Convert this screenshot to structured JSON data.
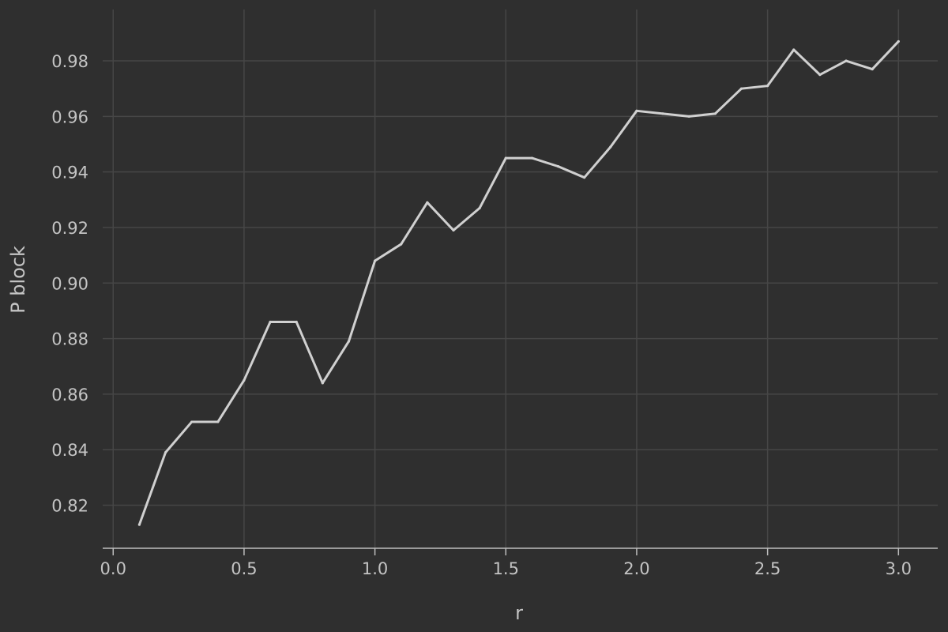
{
  "chart_data": {
    "type": "line",
    "title": "",
    "xlabel": "r",
    "ylabel": "P block",
    "xlim": [
      -0.04,
      3.15
    ],
    "ylim": [
      0.8045,
      0.9985
    ],
    "x_ticks": [
      0.0,
      0.5,
      1.0,
      1.5,
      2.0,
      2.5,
      3.0
    ],
    "x_tick_labels": [
      "0.0",
      "0.5",
      "1.0",
      "1.5",
      "2.0",
      "2.5",
      "3.0"
    ],
    "y_ticks": [
      0.82,
      0.84,
      0.86,
      0.88,
      0.9,
      0.92,
      0.94,
      0.96,
      0.98
    ],
    "y_tick_labels": [
      "0.82",
      "0.84",
      "0.86",
      "0.88",
      "0.90",
      "0.92",
      "0.94",
      "0.96",
      "0.98"
    ],
    "grid": true,
    "legend": "none",
    "series": [
      {
        "color": "#d0d0d0",
        "x": [
          0.1,
          0.2,
          0.3,
          0.4,
          0.5,
          0.6,
          0.7,
          0.8,
          0.9,
          1.0,
          1.1,
          1.2,
          1.3,
          1.4,
          1.5,
          1.6,
          1.7,
          1.8,
          1.9,
          2.0,
          2.1,
          2.2,
          2.3,
          2.4,
          2.5,
          2.6,
          2.7,
          2.8,
          2.9,
          3.0
        ],
        "y": [
          0.813,
          0.839,
          0.85,
          0.85,
          0.865,
          0.886,
          0.886,
          0.864,
          0.879,
          0.908,
          0.914,
          0.929,
          0.919,
          0.927,
          0.945,
          0.945,
          0.942,
          0.938,
          0.949,
          0.962,
          0.961,
          0.96,
          0.961,
          0.97,
          0.971,
          0.984,
          0.975,
          0.98,
          0.977,
          0.987
        ]
      }
    ]
  },
  "colors": {
    "background": "#2f2f2f",
    "grid": "#464646",
    "axis": "#bdbdbd",
    "text": "#c4c4c4"
  }
}
